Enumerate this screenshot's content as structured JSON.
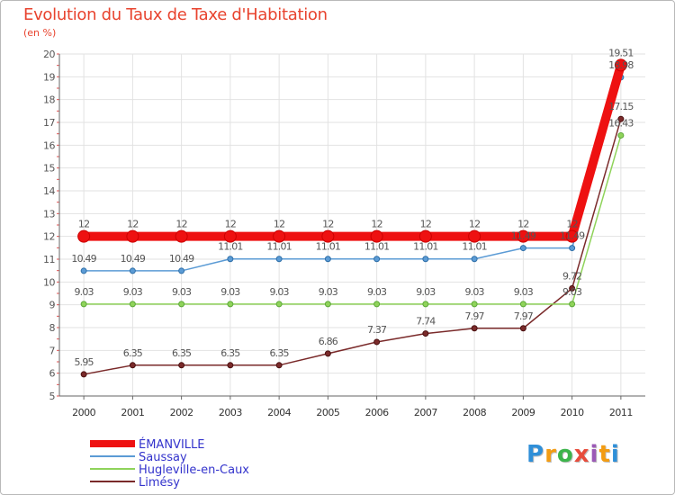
{
  "header": {
    "title": "Evolution du Taux de Taxe d'Habitation",
    "subtitle": "(en %)"
  },
  "brand": {
    "logo_text": "Proxiti",
    "letters": [
      {
        "ch": "P",
        "color": "#2f8fd8"
      },
      {
        "ch": "r",
        "color": "#f39c12"
      },
      {
        "ch": "o",
        "color": "#3cb44b"
      },
      {
        "ch": "x",
        "color": "#e74c3c"
      },
      {
        "ch": "i",
        "color": "#9b59b6"
      },
      {
        "ch": "t",
        "color": "#f39c12"
      },
      {
        "ch": "i",
        "color": "#2f8fd8"
      }
    ]
  },
  "chart_data": {
    "type": "line",
    "title": "Evolution du Taux de Taxe d'Habitation",
    "ylabel": "(en %)",
    "xlabel": "",
    "ylim": [
      5,
      20
    ],
    "yticks": [
      5,
      6,
      7,
      8,
      9,
      10,
      11,
      12,
      13,
      14,
      15,
      16,
      17,
      18,
      19,
      20
    ],
    "x": [
      "2000",
      "2001",
      "2002",
      "2003",
      "2004",
      "2005",
      "2006",
      "2007",
      "2008",
      "2009",
      "2010",
      "2011"
    ],
    "grid": true,
    "legend_position": "bottom-left",
    "series": [
      {
        "name": "ÉMANVILLE",
        "color": "#ee1111",
        "values": [
          12,
          12,
          12,
          12,
          12,
          12,
          12,
          12,
          12,
          12,
          12,
          19.51
        ],
        "labels": [
          "12",
          "12",
          "12",
          "12",
          "12",
          "12",
          "12",
          "12",
          "12",
          "12",
          "12",
          "19.51"
        ]
      },
      {
        "name": "Saussay",
        "color": "#5b9bd5",
        "values": [
          10.49,
          10.49,
          10.49,
          11.01,
          11.01,
          11.01,
          11.01,
          11.01,
          11.01,
          11.49,
          11.49,
          18.98
        ],
        "labels": [
          "10.49",
          "10.49",
          "10.49",
          "11.01",
          "11.01",
          "11.01",
          "11.01",
          "11.01",
          "11.01",
          "11.49",
          "11.49",
          "18.98"
        ]
      },
      {
        "name": "Hugleville-en-Caux",
        "color": "#8fd35a",
        "values": [
          9.03,
          9.03,
          9.03,
          9.03,
          9.03,
          9.03,
          9.03,
          9.03,
          9.03,
          9.03,
          9.03,
          16.43
        ],
        "labels": [
          "9.03",
          "9.03",
          "9.03",
          "9.03",
          "9.03",
          "9.03",
          "9.03",
          "9.03",
          "9.03",
          "9.03",
          "9.03",
          "16.43"
        ]
      },
      {
        "name": "Limésy",
        "color": "#7a2a2a",
        "values": [
          5.95,
          6.35,
          6.35,
          6.35,
          6.35,
          6.86,
          7.37,
          7.74,
          7.97,
          7.97,
          9.72,
          17.15
        ],
        "labels": [
          "5.95",
          "6.35",
          "6.35",
          "6.35",
          "6.35",
          "6.86",
          "7.37",
          "7.74",
          "7.97",
          "7.97",
          "9.72",
          "17.15"
        ]
      }
    ]
  }
}
